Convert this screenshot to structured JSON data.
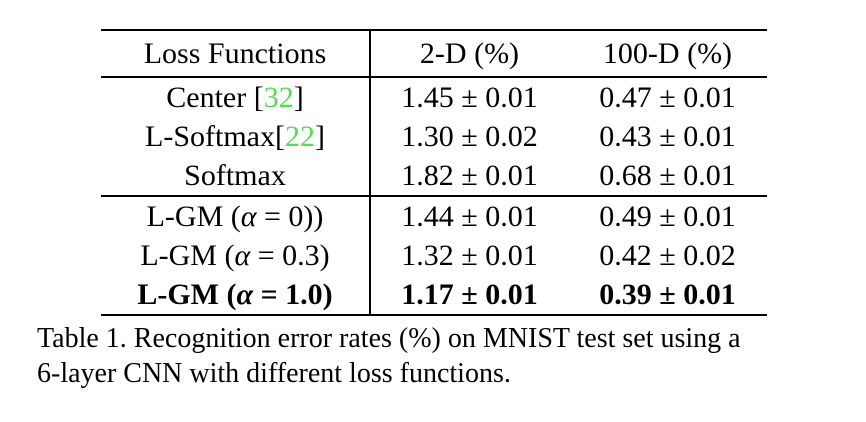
{
  "table": {
    "headers": [
      "Loss Functions",
      "2-D (%)",
      "100-D (%)"
    ],
    "rows": [
      {
        "pre": "Center [",
        "cite": "32",
        "alpha": "",
        "post": "]",
        "d2": "1.45 ± 0.01",
        "d100": "0.47 ± 0.01",
        "bold": false
      },
      {
        "pre": "L-Softmax[",
        "cite": "22",
        "alpha": "",
        "post": "]",
        "d2": "1.30 ± 0.02",
        "d100": "0.43 ± 0.01",
        "bold": false
      },
      {
        "pre": "Softmax",
        "cite": "",
        "alpha": "",
        "post": "",
        "d2": "1.82 ± 0.01",
        "d100": "0.68 ± 0.01",
        "bold": false
      },
      {
        "pre": "L-GM (",
        "cite": "",
        "alpha": "α",
        "post": " = 0))",
        "d2": "1.44 ± 0.01",
        "d100": "0.49 ± 0.01",
        "bold": false
      },
      {
        "pre": "L-GM (",
        "cite": "",
        "alpha": "α",
        "post": " = 0.3)",
        "d2": "1.32 ± 0.01",
        "d100": "0.42 ± 0.02",
        "bold": false
      },
      {
        "pre": "L-GM (",
        "cite": "",
        "alpha": "α",
        "post": " = 1.0)",
        "d2": "1.17 ± 0.01",
        "d100": "0.39 ± 0.01",
        "bold": true
      }
    ]
  },
  "caption": {
    "line1": "Table 1. Recognition error rates (%) on MNIST test set using a",
    "line2": "6-layer CNN with different loss functions."
  },
  "colors": {
    "text": "#000000",
    "background": "#ffffff",
    "citation_green": "#54dd54",
    "rule": "#000000"
  }
}
